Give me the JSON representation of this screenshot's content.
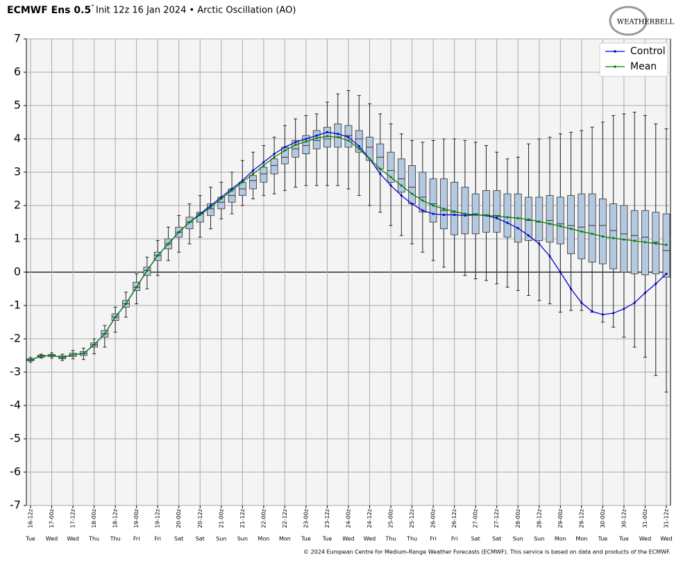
{
  "chart_data": {
    "type": "box",
    "title": "ECMWF Ens 0.5",
    "title_degree": "°",
    "subtitle": "Init 12z 16 Jan 2024 • Arctic Oscillation (AO)",
    "logo": "WEATHERBELL",
    "footer": "© 2024 European Centre for Medium-Range Weather Forecasts (ECMWF). This service is based on data and products of the ECMWF.",
    "categories": [
      "16-12z",
      null,
      "17-00z",
      null,
      "17-12z",
      null,
      "18-00z",
      null,
      "18-12z",
      null,
      "19-00z",
      null,
      "19-12z",
      null,
      "20-00z",
      null,
      "20-12z",
      null,
      "21-00z",
      null,
      "21-12z",
      null,
      "22-00z",
      null,
      "22-12z",
      null,
      "23-00z",
      null,
      "23-12z",
      null,
      "24-00z",
      null,
      "24-12z",
      null,
      "25-00z",
      null,
      "25-12z",
      null,
      "26-00z",
      null,
      "26-12z",
      null,
      "27-00z",
      null,
      "27-12z",
      null,
      "28-00z",
      null,
      "28-12z",
      null,
      "29-00z",
      null,
      "29-12z",
      null,
      "30-00z",
      null,
      "30-12z",
      null,
      "31-00z",
      null,
      "31-12z"
    ],
    "day_labels": [
      "Tue",
      null,
      "Wed",
      null,
      "Wed",
      null,
      "Thu",
      null,
      "Thu",
      null,
      "Fri",
      null,
      "Fri",
      null,
      "Sat",
      null,
      "Sat",
      null,
      "Sun",
      null,
      "Sun",
      null,
      "Mon",
      null,
      "Mon",
      null,
      "Tue",
      null,
      "Tue",
      null,
      "Wed",
      null,
      "Wed",
      null,
      "Thu",
      null,
      "Thu",
      null,
      "Fri",
      null,
      "Fri",
      null,
      "Sat",
      null,
      "Sat",
      null,
      "Sun",
      null,
      "Sun",
      null,
      "Mon",
      null,
      "Mon",
      null,
      "Tue",
      null,
      "Tue",
      null,
      "Wed",
      null,
      "Wed"
    ],
    "ylim": [
      -7,
      7
    ],
    "yticks": [
      -7,
      -6,
      -5,
      -4,
      -3,
      -2,
      -1,
      0,
      1,
      2,
      3,
      4,
      5,
      6,
      7
    ],
    "grid": true,
    "legend": "upper right",
    "box_color": "#b4c8e0",
    "boxes": {
      "min": [
        -2.7,
        -2.58,
        -2.58,
        -2.65,
        -2.6,
        -2.62,
        -2.45,
        -2.25,
        -1.8,
        -1.35,
        -0.95,
        -0.5,
        -0.1,
        0.35,
        0.6,
        0.85,
        1.05,
        1.3,
        1.6,
        1.75,
        2.0,
        2.2,
        2.3,
        2.35,
        2.45,
        2.55,
        2.6,
        2.6,
        2.6,
        2.6,
        2.5,
        2.3,
        2.0,
        1.8,
        1.4,
        1.1,
        0.85,
        0.6,
        0.35,
        0.15,
        0.0,
        -0.1,
        -0.2,
        -0.25,
        -0.35,
        -0.45,
        -0.55,
        -0.7,
        -0.85,
        -0.95,
        -1.2,
        -1.15,
        -1.15,
        -1.2,
        -1.5,
        -1.65,
        -1.95,
        -2.25,
        -2.55,
        -3.1,
        -3.6
      ],
      "q1": [
        -2.66,
        -2.55,
        -2.53,
        -2.6,
        -2.53,
        -2.5,
        -2.25,
        -1.95,
        -1.45,
        -1.05,
        -0.55,
        -0.1,
        0.35,
        0.7,
        1.05,
        1.3,
        1.5,
        1.7,
        1.9,
        2.1,
        2.3,
        2.5,
        2.7,
        2.95,
        3.25,
        3.45,
        3.55,
        3.7,
        3.75,
        3.75,
        3.75,
        3.6,
        3.35,
        3.1,
        2.7,
        2.4,
        2.05,
        1.8,
        1.5,
        1.3,
        1.12,
        1.15,
        1.15,
        1.2,
        1.2,
        1.05,
        0.9,
        0.95,
        0.95,
        0.9,
        0.85,
        0.55,
        0.4,
        0.3,
        0.25,
        0.1,
        0.0,
        -0.05,
        -0.08,
        -0.05,
        -0.15
      ],
      "median": [
        -2.63,
        -2.52,
        -2.5,
        -2.56,
        -2.48,
        -2.44,
        -2.18,
        -1.85,
        -1.35,
        -0.95,
        -0.45,
        0.05,
        0.5,
        0.85,
        1.2,
        1.5,
        1.75,
        1.9,
        2.1,
        2.3,
        2.5,
        2.75,
        2.95,
        3.2,
        3.45,
        3.7,
        3.8,
        3.95,
        4.0,
        4.05,
        4.1,
        4.0,
        3.75,
        3.45,
        3.05,
        2.8,
        2.55,
        2.25,
        2.05,
        1.85,
        1.8,
        1.75,
        1.75,
        1.72,
        1.7,
        1.65,
        1.62,
        1.55,
        1.5,
        1.55,
        1.45,
        1.4,
        1.35,
        1.4,
        1.4,
        1.25,
        1.15,
        1.1,
        1.05,
        0.9,
        0.65
      ],
      "q3": [
        -2.6,
        -2.49,
        -2.47,
        -2.51,
        -2.43,
        -2.38,
        -2.12,
        -1.75,
        -1.25,
        -0.85,
        -0.3,
        0.15,
        0.6,
        1.0,
        1.35,
        1.65,
        1.8,
        2.05,
        2.25,
        2.5,
        2.7,
        2.9,
        3.15,
        3.4,
        3.75,
        3.95,
        4.1,
        4.25,
        4.35,
        4.45,
        4.4,
        4.25,
        4.05,
        3.85,
        3.6,
        3.4,
        3.2,
        3.0,
        2.8,
        2.8,
        2.7,
        2.55,
        2.35,
        2.45,
        2.45,
        2.35,
        2.35,
        2.25,
        2.25,
        2.3,
        2.25,
        2.3,
        2.35,
        2.35,
        2.2,
        2.05,
        2.0,
        1.85,
        1.85,
        1.8,
        1.75
      ],
      "max": [
        -2.56,
        -2.46,
        -2.42,
        -2.46,
        -2.35,
        -2.28,
        -2.0,
        -1.6,
        -1.05,
        -0.6,
        -0.05,
        0.45,
        0.95,
        1.35,
        1.7,
        2.05,
        2.3,
        2.55,
        2.7,
        3.0,
        3.35,
        3.6,
        3.8,
        4.05,
        4.4,
        4.6,
        4.7,
        4.75,
        5.1,
        5.35,
        5.45,
        5.3,
        5.05,
        4.75,
        4.45,
        4.15,
        3.95,
        3.9,
        3.95,
        4.0,
        4.0,
        3.95,
        3.9,
        3.8,
        3.6,
        3.4,
        3.45,
        3.85,
        4.0,
        4.05,
        4.15,
        4.2,
        4.25,
        4.35,
        4.5,
        4.7,
        4.75,
        4.8,
        4.7,
        4.45,
        4.3
      ]
    },
    "series": [
      {
        "name": "Control",
        "color": "#0000cc",
        "values": [
          -2.63,
          -2.52,
          -2.5,
          -2.56,
          -2.48,
          -2.44,
          -2.18,
          -1.85,
          -1.35,
          -0.95,
          -0.45,
          0.05,
          0.5,
          0.85,
          1.2,
          1.5,
          1.75,
          2.0,
          2.25,
          2.5,
          2.75,
          3.05,
          3.3,
          3.55,
          3.75,
          3.9,
          4.0,
          4.1,
          4.2,
          4.15,
          4.05,
          3.78,
          3.4,
          2.95,
          2.6,
          2.3,
          2.05,
          1.85,
          1.75,
          1.72,
          1.72,
          1.7,
          1.72,
          1.7,
          1.62,
          1.48,
          1.32,
          1.1,
          0.85,
          0.48,
          0.0,
          -0.5,
          -0.92,
          -1.18,
          -1.27,
          -1.23,
          -1.1,
          -0.92,
          -0.62,
          -0.35,
          -0.05
        ]
      },
      {
        "name": "Mean",
        "color": "#008000",
        "values": [
          -2.63,
          -2.52,
          -2.5,
          -2.56,
          -2.48,
          -2.44,
          -2.18,
          -1.85,
          -1.35,
          -0.95,
          -0.45,
          0.05,
          0.5,
          0.85,
          1.2,
          1.5,
          1.72,
          1.95,
          2.2,
          2.45,
          2.7,
          2.95,
          3.2,
          3.45,
          3.65,
          3.82,
          3.92,
          4.02,
          4.08,
          4.05,
          3.95,
          3.7,
          3.4,
          3.1,
          2.85,
          2.6,
          2.35,
          2.15,
          2.0,
          1.9,
          1.82,
          1.75,
          1.72,
          1.7,
          1.68,
          1.65,
          1.62,
          1.58,
          1.52,
          1.45,
          1.38,
          1.3,
          1.22,
          1.15,
          1.07,
          1.02,
          0.98,
          0.94,
          0.9,
          0.86,
          0.82
        ]
      }
    ]
  }
}
